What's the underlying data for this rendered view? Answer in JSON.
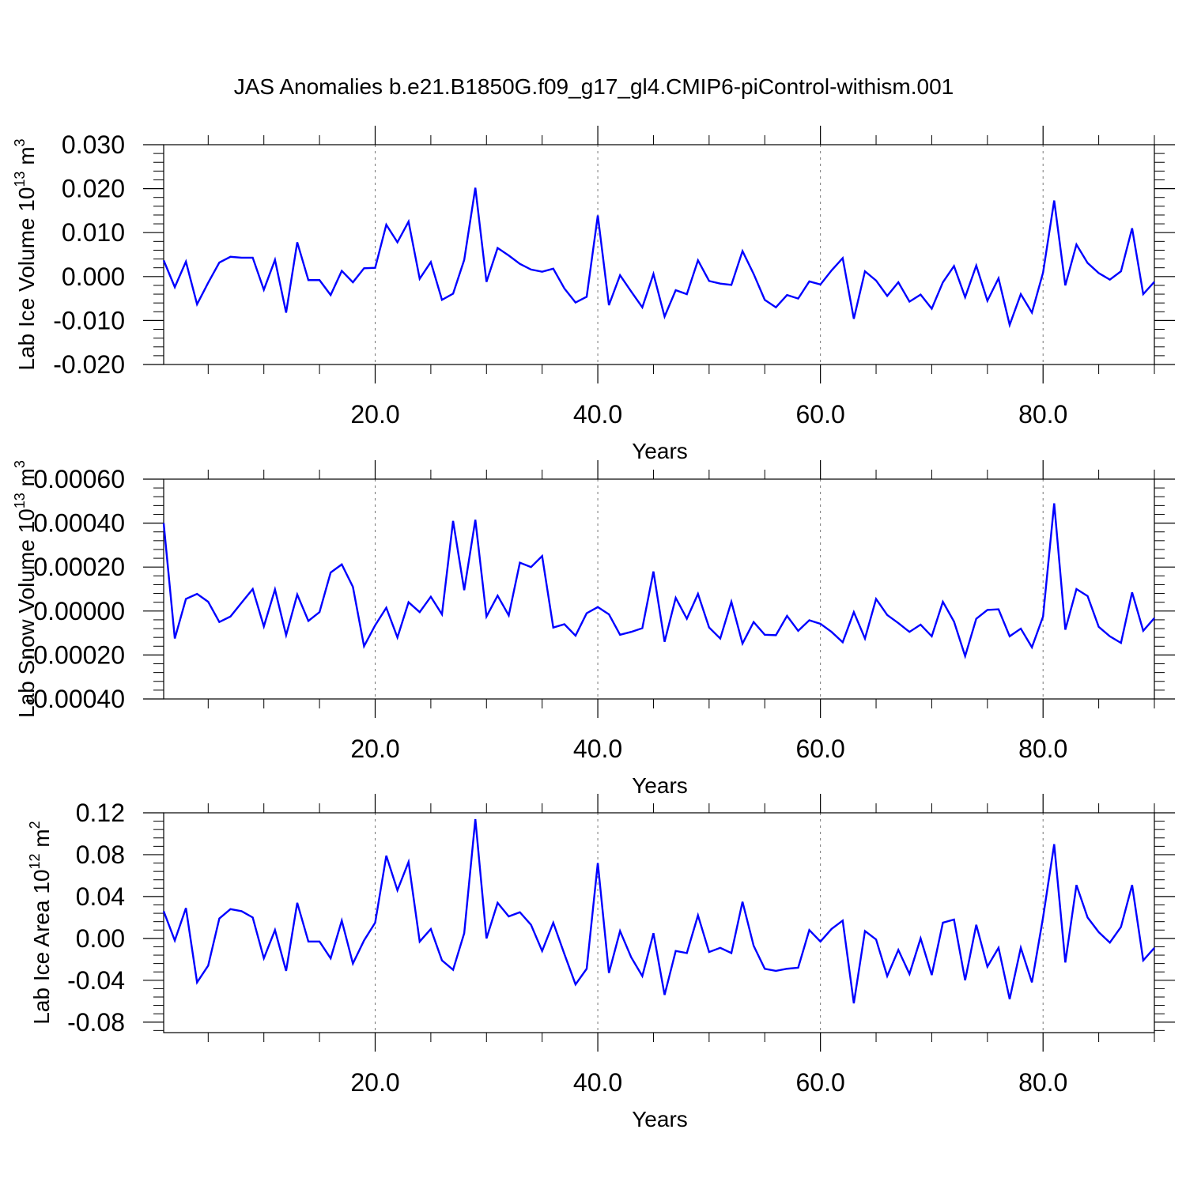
{
  "title": "JAS Anomalies b.e21.B1850G.f09_g17_gl4.CMIP6-piControl-withism.001",
  "chart_data": [
    {
      "type": "line",
      "ylabel": {
        "prefix": "Lab Ice Volume 10",
        "exp": "13",
        "unit": " m",
        "unit_exp": "3"
      },
      "xlabel": "Years",
      "xlim": [
        1,
        90
      ],
      "ylim": [
        -0.02,
        0.03
      ],
      "yticks": [
        -0.02,
        -0.01,
        0.0,
        0.01,
        0.02,
        0.03
      ],
      "ytick_labels": [
        "-0.020",
        "-0.010",
        "0.000",
        "0.010",
        "0.020",
        "0.030"
      ],
      "xticks": [
        20,
        40,
        60,
        80
      ],
      "xtick_labels": [
        "20.0",
        "40.0",
        "60.0",
        "80.0"
      ],
      "line_color": "#0000ff",
      "x_start": 1,
      "values": [
        0.0037,
        -0.0024,
        0.0034,
        -0.0063,
        -0.0014,
        0.0032,
        0.0045,
        0.0043,
        0.0043,
        -0.003,
        0.0038,
        -0.0082,
        0.0078,
        -0.0008,
        -0.0008,
        -0.0042,
        0.0013,
        -0.0013,
        0.0019,
        0.002,
        0.0118,
        0.0078,
        0.0125,
        -0.0005,
        0.0033,
        -0.0053,
        -0.0039,
        0.0038,
        0.0202,
        -0.0012,
        0.0065,
        0.0048,
        0.0029,
        0.0016,
        0.0011,
        0.0018,
        -0.0027,
        -0.0059,
        -0.0046,
        0.0139,
        -0.0065,
        0.0003,
        -0.0034,
        -0.007,
        0.0006,
        -0.0091,
        -0.0031,
        -0.004,
        0.0037,
        -0.001,
        -0.0016,
        -0.0019,
        0.0058,
        0.0006,
        -0.0053,
        -0.007,
        -0.0042,
        -0.005,
        -0.0011,
        -0.0018,
        0.0014,
        0.0042,
        -0.0096,
        0.0012,
        -0.0009,
        -0.0044,
        -0.0013,
        -0.0057,
        -0.0041,
        -0.0073,
        -0.0013,
        0.0024,
        -0.0047,
        0.0025,
        -0.0055,
        -0.0004,
        -0.011,
        -0.004,
        -0.0082,
        0.0009,
        0.0173,
        -0.002,
        0.0073,
        0.0031,
        0.0008,
        -0.0007,
        0.0012,
        0.011,
        -0.004,
        -0.0012
      ]
    },
    {
      "type": "line",
      "ylabel": {
        "prefix": "Lab Snow Volume 10",
        "exp": "13",
        "unit": " m",
        "unit_exp": "3"
      },
      "xlabel": "Years",
      "xlim": [
        1,
        90
      ],
      "ylim": [
        -0.0004,
        0.0006
      ],
      "yticks": [
        -0.0004,
        -0.0002,
        0.0,
        0.0002,
        0.0004,
        0.0006
      ],
      "ytick_labels": [
        "-0.00040",
        "-0.00020",
        "0.00000",
        "0.00020",
        "0.00040",
        "0.00060"
      ],
      "xticks": [
        20,
        40,
        60,
        80
      ],
      "xtick_labels": [
        "20.0",
        "40.0",
        "60.0",
        "80.0"
      ],
      "line_color": "#0000ff",
      "x_start": 1,
      "values": [
        0.0004,
        -0.000125,
        5.5e-05,
        7.8e-05,
        4.2e-05,
        -5e-05,
        -2.5e-05,
        3.8e-05,
        0.0001,
        -7e-05,
        9.8e-05,
        -0.00011,
        7.5e-05,
        -4.5e-05,
        -5e-06,
        0.000175,
        0.000212,
        0.00011,
        -0.00016,
        -6.5e-05,
        1.5e-05,
        -0.00012,
        4e-05,
        -5e-06,
        6.5e-05,
        -1.5e-05,
        0.00041,
        9.5e-05,
        0.000415,
        -2.5e-05,
        7e-05,
        -2e-05,
        0.00022,
        0.0002,
        0.00025,
        -7.5e-05,
        -6e-05,
        -0.000112,
        -1e-05,
        1.8e-05,
        -1.5e-05,
        -0.000108,
        -9.5e-05,
        -7.8e-05,
        0.00018,
        -0.00014,
        6e-05,
        -3.5e-05,
        7.8e-05,
        -7.5e-05,
        -0.000125,
        4.2e-05,
        -0.000148,
        -5e-05,
        -0.000108,
        -0.00011,
        -2.2e-05,
        -9e-05,
        -4.2e-05,
        -5.8e-05,
        -9.5e-05,
        -0.000142,
        -5e-06,
        -0.000125,
        5.5e-05,
        -1.8e-05,
        -5.5e-05,
        -9.5e-05,
        -6.2e-05,
        -0.000115,
        4.2e-05,
        -4.8e-05,
        -0.000205,
        -3.5e-05,
        5e-06,
        8e-06,
        -0.000115,
        -8e-05,
        -0.000165,
        -2.5e-05,
        0.00049,
        -8.5e-05,
        0.0001,
        6.8e-05,
        -7.2e-05,
        -0.000115,
        -0.000145,
        8.5e-05,
        -9e-05,
        -3.2e-05
      ]
    },
    {
      "type": "line",
      "ylabel": {
        "prefix": "Lab Ice Area 10",
        "exp": "12",
        "unit": " m",
        "unit_exp": "2"
      },
      "xlabel": "Years",
      "xlim": [
        1,
        90
      ],
      "ylim": [
        -0.09,
        0.12
      ],
      "yticks": [
        -0.08,
        -0.04,
        0.0,
        0.04,
        0.08,
        0.12
      ],
      "ytick_labels": [
        "-0.08",
        "-0.04",
        "0.00",
        "0.04",
        "0.08",
        "0.12"
      ],
      "xticks": [
        20,
        40,
        60,
        80
      ],
      "xtick_labels": [
        "20.0",
        "40.0",
        "60.0",
        "80.0"
      ],
      "line_color": "#0000ff",
      "x_start": 1,
      "values": [
        0.026,
        -0.002,
        0.029,
        -0.042,
        -0.026,
        0.019,
        0.028,
        0.026,
        0.02,
        -0.019,
        0.008,
        -0.031,
        0.034,
        -0.003,
        -0.003,
        -0.019,
        0.017,
        -0.024,
        -0.002,
        0.015,
        0.079,
        0.046,
        0.073,
        -0.003,
        0.009,
        -0.021,
        -0.03,
        0.005,
        0.114,
        0.0,
        0.034,
        0.021,
        0.025,
        0.013,
        -0.012,
        0.015,
        -0.015,
        -0.044,
        -0.029,
        0.072,
        -0.033,
        0.007,
        -0.018,
        -0.036,
        0.005,
        -0.054,
        -0.012,
        -0.014,
        0.022,
        -0.013,
        -0.009,
        -0.014,
        0.035,
        -0.007,
        -0.029,
        -0.031,
        -0.029,
        -0.028,
        0.008,
        -0.003,
        0.009,
        0.017,
        -0.062,
        0.007,
        -0.001,
        -0.036,
        -0.011,
        -0.034,
        0.0,
        -0.035,
        0.015,
        0.018,
        -0.04,
        0.013,
        -0.027,
        -0.009,
        -0.058,
        -0.009,
        -0.042,
        0.02,
        0.09,
        -0.023,
        0.051,
        0.02,
        0.006,
        -0.004,
        0.011,
        0.051,
        -0.021,
        -0.009
      ]
    }
  ]
}
